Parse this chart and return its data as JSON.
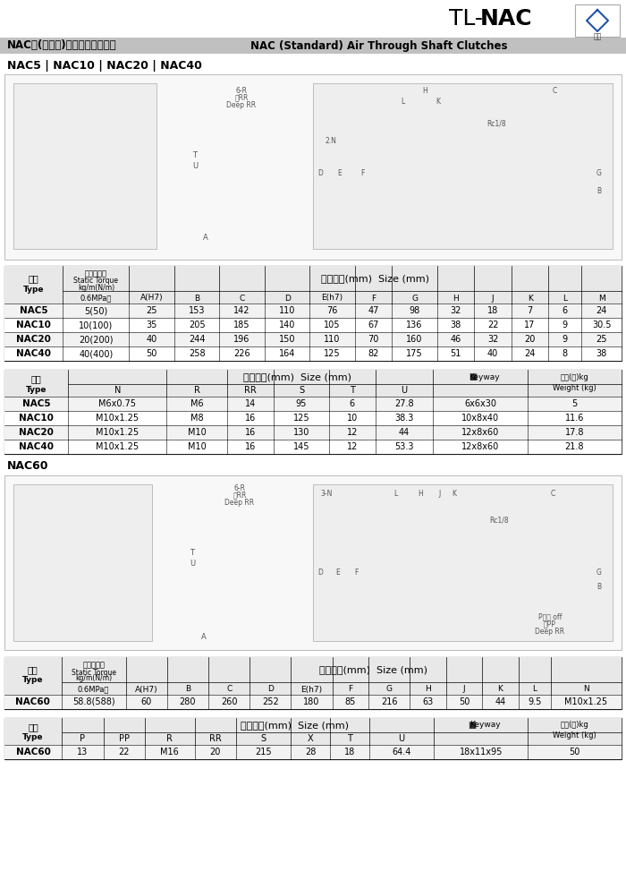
{
  "title_cn": "NAC型(標準型)空壓通軸式離合器",
  "title_en": "NAC (Standard) Air Through Shaft Clutches",
  "brand_tl": "TL-",
  "brand_nac": "NAC",
  "section1_title": "NAC5 | NAC10 | NAC20 | NAC40",
  "section2_title": "NAC60",
  "table1_data": [
    [
      "NAC5",
      "5(50)",
      "25",
      "153",
      "142",
      "110",
      "76",
      "47",
      "98",
      "32",
      "18",
      "7",
      "6",
      "24"
    ],
    [
      "NAC10",
      "10(100)",
      "35",
      "205",
      "185",
      "140",
      "105",
      "67",
      "136",
      "38",
      "22",
      "17",
      "9",
      "30.5"
    ],
    [
      "NAC20",
      "20(200)",
      "40",
      "244",
      "196",
      "150",
      "110",
      "70",
      "160",
      "46",
      "32",
      "20",
      "9",
      "25"
    ],
    [
      "NAC40",
      "40(400)",
      "50",
      "258",
      "226",
      "164",
      "125",
      "82",
      "175",
      "51",
      "40",
      "24",
      "8",
      "38"
    ]
  ],
  "table2_data": [
    [
      "NAC5",
      "M6x0.75",
      "M6",
      "14",
      "95",
      "6",
      "27.8",
      "6x6x30",
      "5"
    ],
    [
      "NAC10",
      "M10x1.25",
      "M8",
      "16",
      "125",
      "10",
      "38.3",
      "10x8x40",
      "11.6"
    ],
    [
      "NAC20",
      "M10x1.25",
      "M10",
      "16",
      "130",
      "12",
      "44",
      "12x8x60",
      "17.8"
    ],
    [
      "NAC40",
      "M10x1.25",
      "M10",
      "16",
      "145",
      "12",
      "53.3",
      "12x8x60",
      "21.8"
    ]
  ],
  "table3_data": [
    [
      "NAC60",
      "58.8(588)",
      "60",
      "280",
      "260",
      "252",
      "180",
      "85",
      "216",
      "63",
      "50",
      "44",
      "9.5",
      "M10x1.25"
    ]
  ],
  "table4_data": [
    [
      "NAC60",
      "13",
      "22",
      "M16",
      "20",
      "215",
      "28",
      "18",
      "64.4",
      "18x11x95",
      "50"
    ]
  ],
  "bg_color": "#ffffff",
  "header_gray": "#e8e8e8",
  "row_alt": "#f2f2f2",
  "border_color": "#555555",
  "text_dark": "#111111",
  "diagram_bg": "#f8f8f8",
  "top_gray": "#d0d0d0",
  "subtitle_gray": "#c0c0c0"
}
